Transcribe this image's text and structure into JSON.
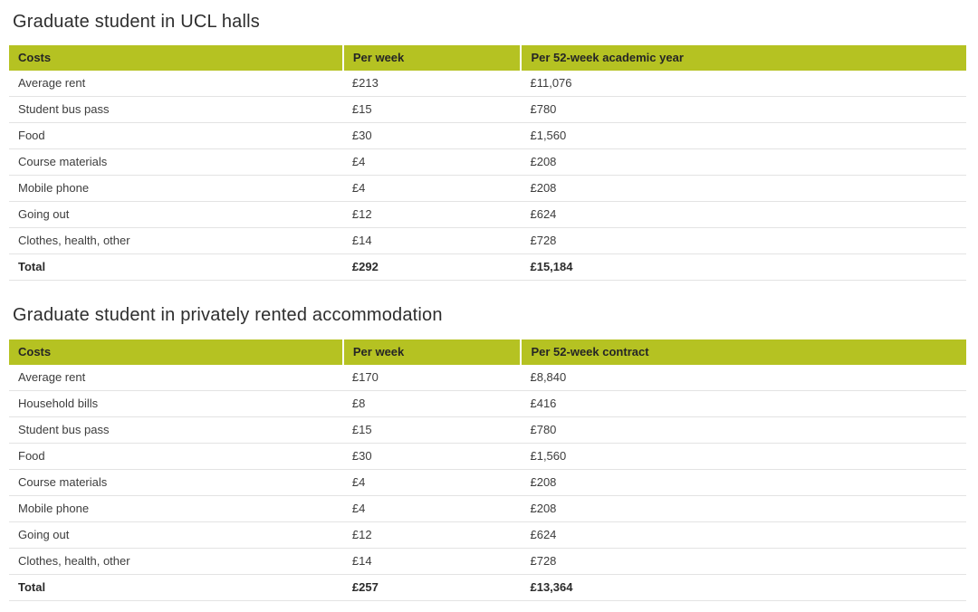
{
  "colors": {
    "table_header_bg": "#b5c222",
    "table_header_text": "#252525",
    "body_text": "#3c3c3c",
    "title_text": "#2e2e2e",
    "row_border": "#e3e3e3",
    "page_bg": "#ffffff"
  },
  "tables": [
    {
      "title": "Graduate student in UCL halls",
      "columns": [
        "Costs",
        "Per week",
        "Per 52-week academic year"
      ],
      "rows": [
        {
          "label": "Average rent",
          "per_week": "£213",
          "per_period": "£11,076",
          "is_total": false
        },
        {
          "label": "Student bus pass",
          "per_week": "£15",
          "per_period": "£780",
          "is_total": false
        },
        {
          "label": "Food",
          "per_week": "£30",
          "per_period": "£1,560",
          "is_total": false
        },
        {
          "label": "Course materials",
          "per_week": "£4",
          "per_period": "£208",
          "is_total": false
        },
        {
          "label": "Mobile phone",
          "per_week": "£4",
          "per_period": "£208",
          "is_total": false
        },
        {
          "label": "Going out",
          "per_week": "£12",
          "per_period": "£624",
          "is_total": false
        },
        {
          "label": "Clothes, health, other",
          "per_week": "£14",
          "per_period": "£728",
          "is_total": false
        },
        {
          "label": "Total",
          "per_week": "£292",
          "per_period": "£15,184",
          "is_total": true
        }
      ]
    },
    {
      "title": "Graduate student in privately rented accommodation",
      "columns": [
        "Costs",
        "Per week",
        "Per 52-week contract"
      ],
      "rows": [
        {
          "label": "Average rent",
          "per_week": "£170",
          "per_period": "£8,840",
          "is_total": false
        },
        {
          "label": "Household bills",
          "per_week": "£8",
          "per_period": "£416",
          "is_total": false
        },
        {
          "label": "Student bus pass",
          "per_week": "£15",
          "per_period": "£780",
          "is_total": false
        },
        {
          "label": "Food",
          "per_week": "£30",
          "per_period": "£1,560",
          "is_total": false
        },
        {
          "label": "Course materials",
          "per_week": "£4",
          "per_period": "£208",
          "is_total": false
        },
        {
          "label": "Mobile phone",
          "per_week": "£4",
          "per_period": "£208",
          "is_total": false
        },
        {
          "label": "Going out",
          "per_week": "£12",
          "per_period": "£624",
          "is_total": false
        },
        {
          "label": "Clothes, health, other",
          "per_week": "£14",
          "per_period": "£728",
          "is_total": false
        },
        {
          "label": "Total",
          "per_week": "£257",
          "per_period": "£13,364",
          "is_total": true
        }
      ]
    }
  ]
}
